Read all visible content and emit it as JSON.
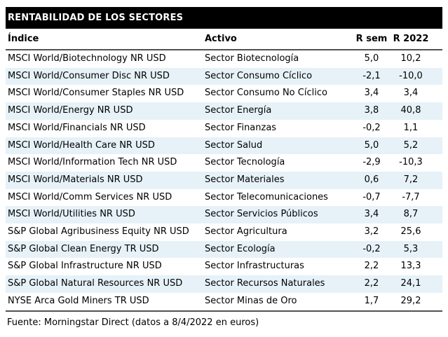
{
  "chart_data": {
    "type": "table",
    "title": "RENTABILIDAD DE LOS SECTORES",
    "columns": [
      "Índice",
      "Activo",
      "R sem",
      "R 2022"
    ],
    "rows": [
      [
        "MSCI World/Biotechnology NR USD",
        "Sector Biotecnología",
        "5,0",
        "10,2"
      ],
      [
        "MSCI World/Consumer Disc NR USD",
        "Sector Consumo Cíclico",
        "-2,1",
        "-10,0"
      ],
      [
        "MSCI World/Consumer Staples NR USD",
        "Sector Consumo No Cíclico",
        "3,4",
        "3,4"
      ],
      [
        "MSCI World/Energy NR USD",
        "Sector Energía",
        "3,8",
        "40,8"
      ],
      [
        "MSCI World/Financials NR USD",
        "Sector Finanzas",
        "-0,2",
        "1,1"
      ],
      [
        "MSCI World/Health Care NR USD",
        "Sector Salud",
        "5,0",
        "5,2"
      ],
      [
        "MSCI World/Information Tech NR USD",
        "Sector Tecnología",
        "-2,9",
        "-10,3"
      ],
      [
        "MSCI World/Materials NR USD",
        "Sector Materiales",
        "0,6",
        "7,2"
      ],
      [
        "MSCI World/Comm Services NR USD",
        "Sector Telecomunicaciones",
        "-0,7",
        "-7,7"
      ],
      [
        "MSCI World/Utilities NR USD",
        "Sector Servicios Públicos",
        "3,4",
        "8,7"
      ],
      [
        "S&P Global Agribusiness Equity NR USD",
        "Sector Agricultura",
        "3,2",
        "25,6"
      ],
      [
        "S&P Global Clean Energy TR USD",
        "Sector Ecología",
        "-0,2",
        "5,3"
      ],
      [
        "S&P Global Infrastructure NR USD",
        "Sector Infrastructuras",
        "2,2",
        "13,3"
      ],
      [
        "S&P Global Natural Resources NR USD",
        "Sector Recursos Naturales",
        "2,2",
        "24,1"
      ],
      [
        "NYSE Arca Gold Miners TR USD",
        "Sector Minas de Oro",
        "1,7",
        "29,2"
      ]
    ],
    "source": "Fuente: Morningstar Direct (datos a 8/4/2022 en euros)",
    "layout": {
      "striped": true,
      "stripe_start_row": 2
    }
  },
  "colors": {
    "title_bar_bg": "#000000",
    "title_text": "#ffffff",
    "alt_row_bg": "#e6f2f8",
    "rule": "#515151",
    "body_text": "#000000"
  }
}
